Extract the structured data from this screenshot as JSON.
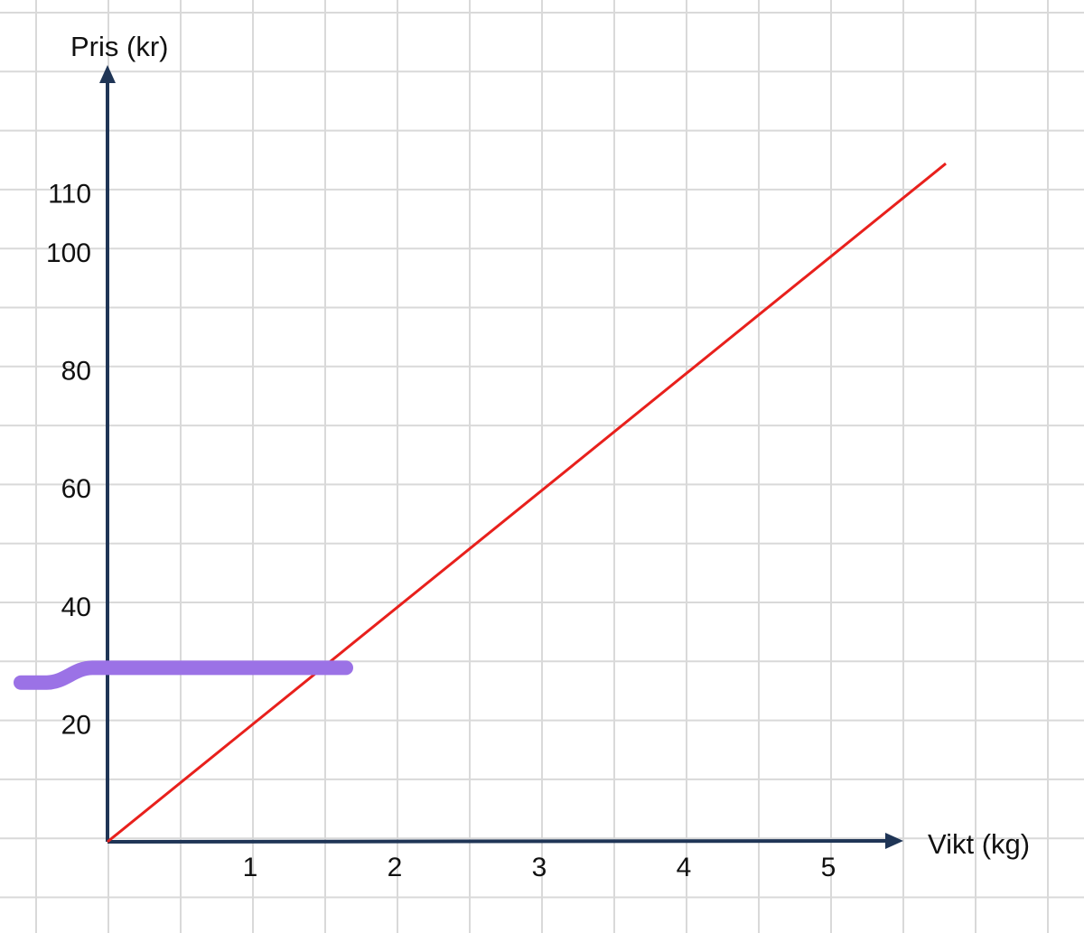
{
  "chart_data": {
    "type": "line",
    "xlabel": "Vikt (kg)",
    "ylabel": "Pris (kr)",
    "xlim": [
      0,
      5.5
    ],
    "ylim": [
      0,
      115
    ],
    "x_ticks": [
      1,
      2,
      3,
      4,
      5
    ],
    "y_ticks": [
      20,
      40,
      60,
      80,
      100,
      110
    ],
    "grid": true,
    "series": [
      {
        "points": [
          [
            0,
            0
          ],
          [
            5.8,
            115
          ]
        ],
        "color": "#e8201c"
      }
    ],
    "annotations": [
      {
        "type": "highlight-stroke",
        "color": "#9b72e6",
        "y_range": [
          27,
          29.5
        ],
        "x_range": [
          -0.6,
          1.65
        ]
      }
    ],
    "axis_color": "#1f3556",
    "grid_color": "#d9d9d9"
  }
}
